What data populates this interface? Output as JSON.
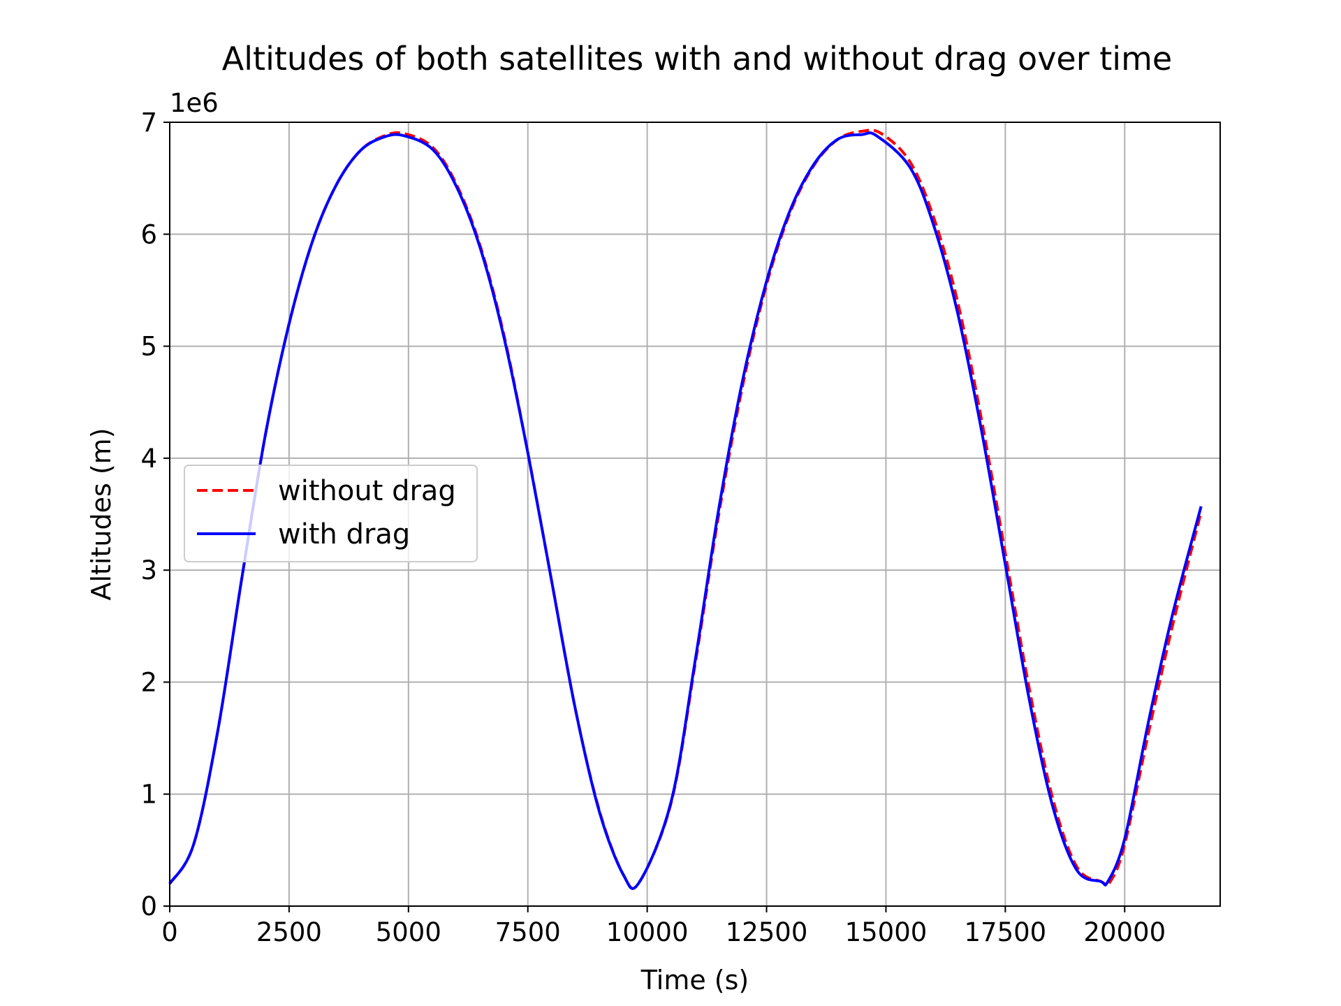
{
  "chart_data": {
    "type": "line",
    "title": "Altitudes of both satellites with and without drag over time",
    "xlabel": "Time (s)",
    "ylabel": "Altitudes (m)",
    "y_offset_label": "1e6",
    "xlim": [
      0,
      22000
    ],
    "ylim": [
      0,
      7
    ],
    "y_scale_multiplier": 1000000,
    "xticks": [
      0,
      2500,
      5000,
      7500,
      10000,
      12500,
      15000,
      17500,
      20000
    ],
    "xtick_labels": [
      "0",
      "2500",
      "5000",
      "7500",
      "10000",
      "12500",
      "15000",
      "17500",
      "20000"
    ],
    "yticks": [
      0,
      1,
      2,
      3,
      4,
      5,
      6,
      7
    ],
    "ytick_labels": [
      "0",
      "1",
      "2",
      "3",
      "4",
      "5",
      "6",
      "7"
    ],
    "grid": true,
    "legend_position": "center-left",
    "series": [
      {
        "name": "without drag",
        "color": "#ff0000",
        "style": "dashed",
        "x": [
          0,
          500,
          1000,
          1500,
          2000,
          2500,
          3000,
          3500,
          4000,
          4500,
          4900,
          5500,
          6000,
          6500,
          7000,
          7500,
          8000,
          8500,
          9000,
          9500,
          9830,
          10500,
          11000,
          11500,
          12000,
          12500,
          13000,
          13500,
          14000,
          14500,
          14900,
          15500,
          16000,
          16500,
          17000,
          17500,
          18000,
          18500,
          19000,
          19500,
          19700,
          20000,
          20500,
          21000,
          21600
        ],
        "y": [
          0.2,
          0.55,
          1.55,
          2.9,
          4.2,
          5.2,
          5.95,
          6.45,
          6.75,
          6.88,
          6.9,
          6.78,
          6.45,
          5.9,
          5.1,
          4.05,
          2.9,
          1.75,
          0.85,
          0.28,
          0.21,
          0.92,
          2.15,
          3.5,
          4.65,
          5.55,
          6.2,
          6.62,
          6.85,
          6.92,
          6.9,
          6.65,
          6.15,
          5.4,
          4.35,
          3.15,
          1.95,
          0.95,
          0.35,
          0.22,
          0.22,
          0.55,
          1.55,
          2.5,
          3.52
        ]
      },
      {
        "name": "with drag",
        "color": "#0000ff",
        "style": "solid",
        "x": [
          0,
          500,
          1000,
          1500,
          2000,
          2500,
          3000,
          3500,
          4000,
          4500,
          4900,
          5500,
          6000,
          6500,
          7000,
          7500,
          8000,
          8500,
          9000,
          9500,
          9830,
          10500,
          11000,
          11500,
          12000,
          12500,
          13000,
          13500,
          14000,
          14500,
          14800,
          15500,
          16000,
          16500,
          17000,
          17500,
          18000,
          18500,
          19000,
          19500,
          19650,
          20000,
          20500,
          21000,
          21600
        ],
        "y": [
          0.2,
          0.55,
          1.55,
          2.9,
          4.2,
          5.2,
          5.95,
          6.45,
          6.75,
          6.87,
          6.88,
          6.76,
          6.43,
          5.88,
          5.08,
          4.05,
          2.9,
          1.75,
          0.84,
          0.28,
          0.21,
          0.93,
          2.18,
          3.55,
          4.7,
          5.58,
          6.22,
          6.63,
          6.85,
          6.89,
          6.88,
          6.6,
          6.08,
          5.3,
          4.25,
          3.05,
          1.85,
          0.88,
          0.32,
          0.22,
          0.22,
          0.6,
          1.65,
          2.6,
          3.57
        ]
      }
    ]
  }
}
